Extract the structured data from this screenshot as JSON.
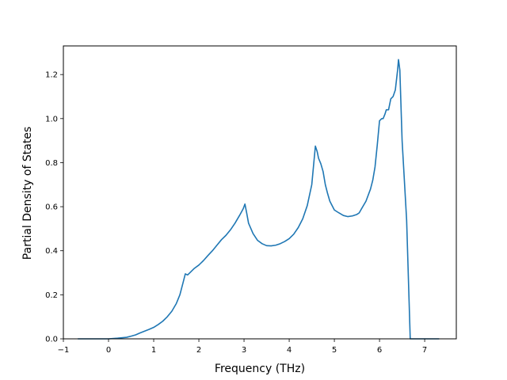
{
  "chart_data": {
    "type": "line",
    "title": "",
    "xlabel": "Frequency (THz)",
    "ylabel": "Partial Density of States",
    "xlim": [
      -1.0,
      7.7
    ],
    "ylim": [
      0.0,
      1.33
    ],
    "xticks": [
      -1,
      0,
      1,
      2,
      3,
      4,
      5,
      6,
      7
    ],
    "xtick_labels": [
      "−1",
      "0",
      "1",
      "2",
      "3",
      "4",
      "5",
      "6",
      "7"
    ],
    "yticks": [
      0.0,
      0.2,
      0.4,
      0.6,
      0.8,
      1.0,
      1.2
    ],
    "ytick_labels": [
      "0.0",
      "0.2",
      "0.4",
      "0.6",
      "0.8",
      "1.0",
      "1.2"
    ],
    "grid": false,
    "line_color": "#1f77b4",
    "series": [
      {
        "x": [
          -0.68,
          -0.3,
          0.0,
          0.2,
          0.4,
          0.5,
          0.6,
          0.7,
          0.8,
          0.9,
          1.0,
          1.1,
          1.2,
          1.3,
          1.4,
          1.5,
          1.58,
          1.65,
          1.7,
          1.75,
          1.8,
          1.9,
          2.0,
          2.1,
          2.2,
          2.3,
          2.4,
          2.5,
          2.6,
          2.7,
          2.8,
          2.9,
          2.98,
          3.02,
          3.06,
          3.1,
          3.2,
          3.3,
          3.4,
          3.5,
          3.6,
          3.7,
          3.8,
          3.9,
          4.0,
          4.1,
          4.2,
          4.3,
          4.4,
          4.5,
          4.55,
          4.58,
          4.62,
          4.65,
          4.7,
          4.75,
          4.8,
          4.85,
          4.9,
          5.0,
          5.1,
          5.2,
          5.3,
          5.4,
          5.5,
          5.55,
          5.6,
          5.7,
          5.8,
          5.85,
          5.9,
          5.95,
          6.0,
          6.05,
          6.08,
          6.12,
          6.15,
          6.2,
          6.25,
          6.3,
          6.35,
          6.4,
          6.42,
          6.45,
          6.5,
          6.6,
          6.68,
          7.0,
          7.32
        ],
        "y": [
          0.0,
          0.0,
          0.0,
          0.003,
          0.007,
          0.012,
          0.018,
          0.027,
          0.035,
          0.043,
          0.052,
          0.065,
          0.08,
          0.1,
          0.125,
          0.16,
          0.2,
          0.255,
          0.295,
          0.29,
          0.3,
          0.32,
          0.335,
          0.355,
          0.378,
          0.4,
          0.425,
          0.45,
          0.47,
          0.495,
          0.525,
          0.56,
          0.59,
          0.612,
          0.57,
          0.525,
          0.478,
          0.447,
          0.432,
          0.423,
          0.422,
          0.425,
          0.432,
          0.442,
          0.455,
          0.475,
          0.505,
          0.545,
          0.605,
          0.7,
          0.81,
          0.875,
          0.85,
          0.82,
          0.795,
          0.76,
          0.7,
          0.66,
          0.625,
          0.585,
          0.572,
          0.56,
          0.555,
          0.558,
          0.565,
          0.572,
          0.59,
          0.625,
          0.68,
          0.72,
          0.78,
          0.88,
          0.99,
          1.0,
          1.0,
          1.02,
          1.04,
          1.04,
          1.09,
          1.1,
          1.13,
          1.22,
          1.268,
          1.22,
          0.9,
          0.54,
          0.0,
          0.0,
          0.0
        ]
      }
    ]
  }
}
